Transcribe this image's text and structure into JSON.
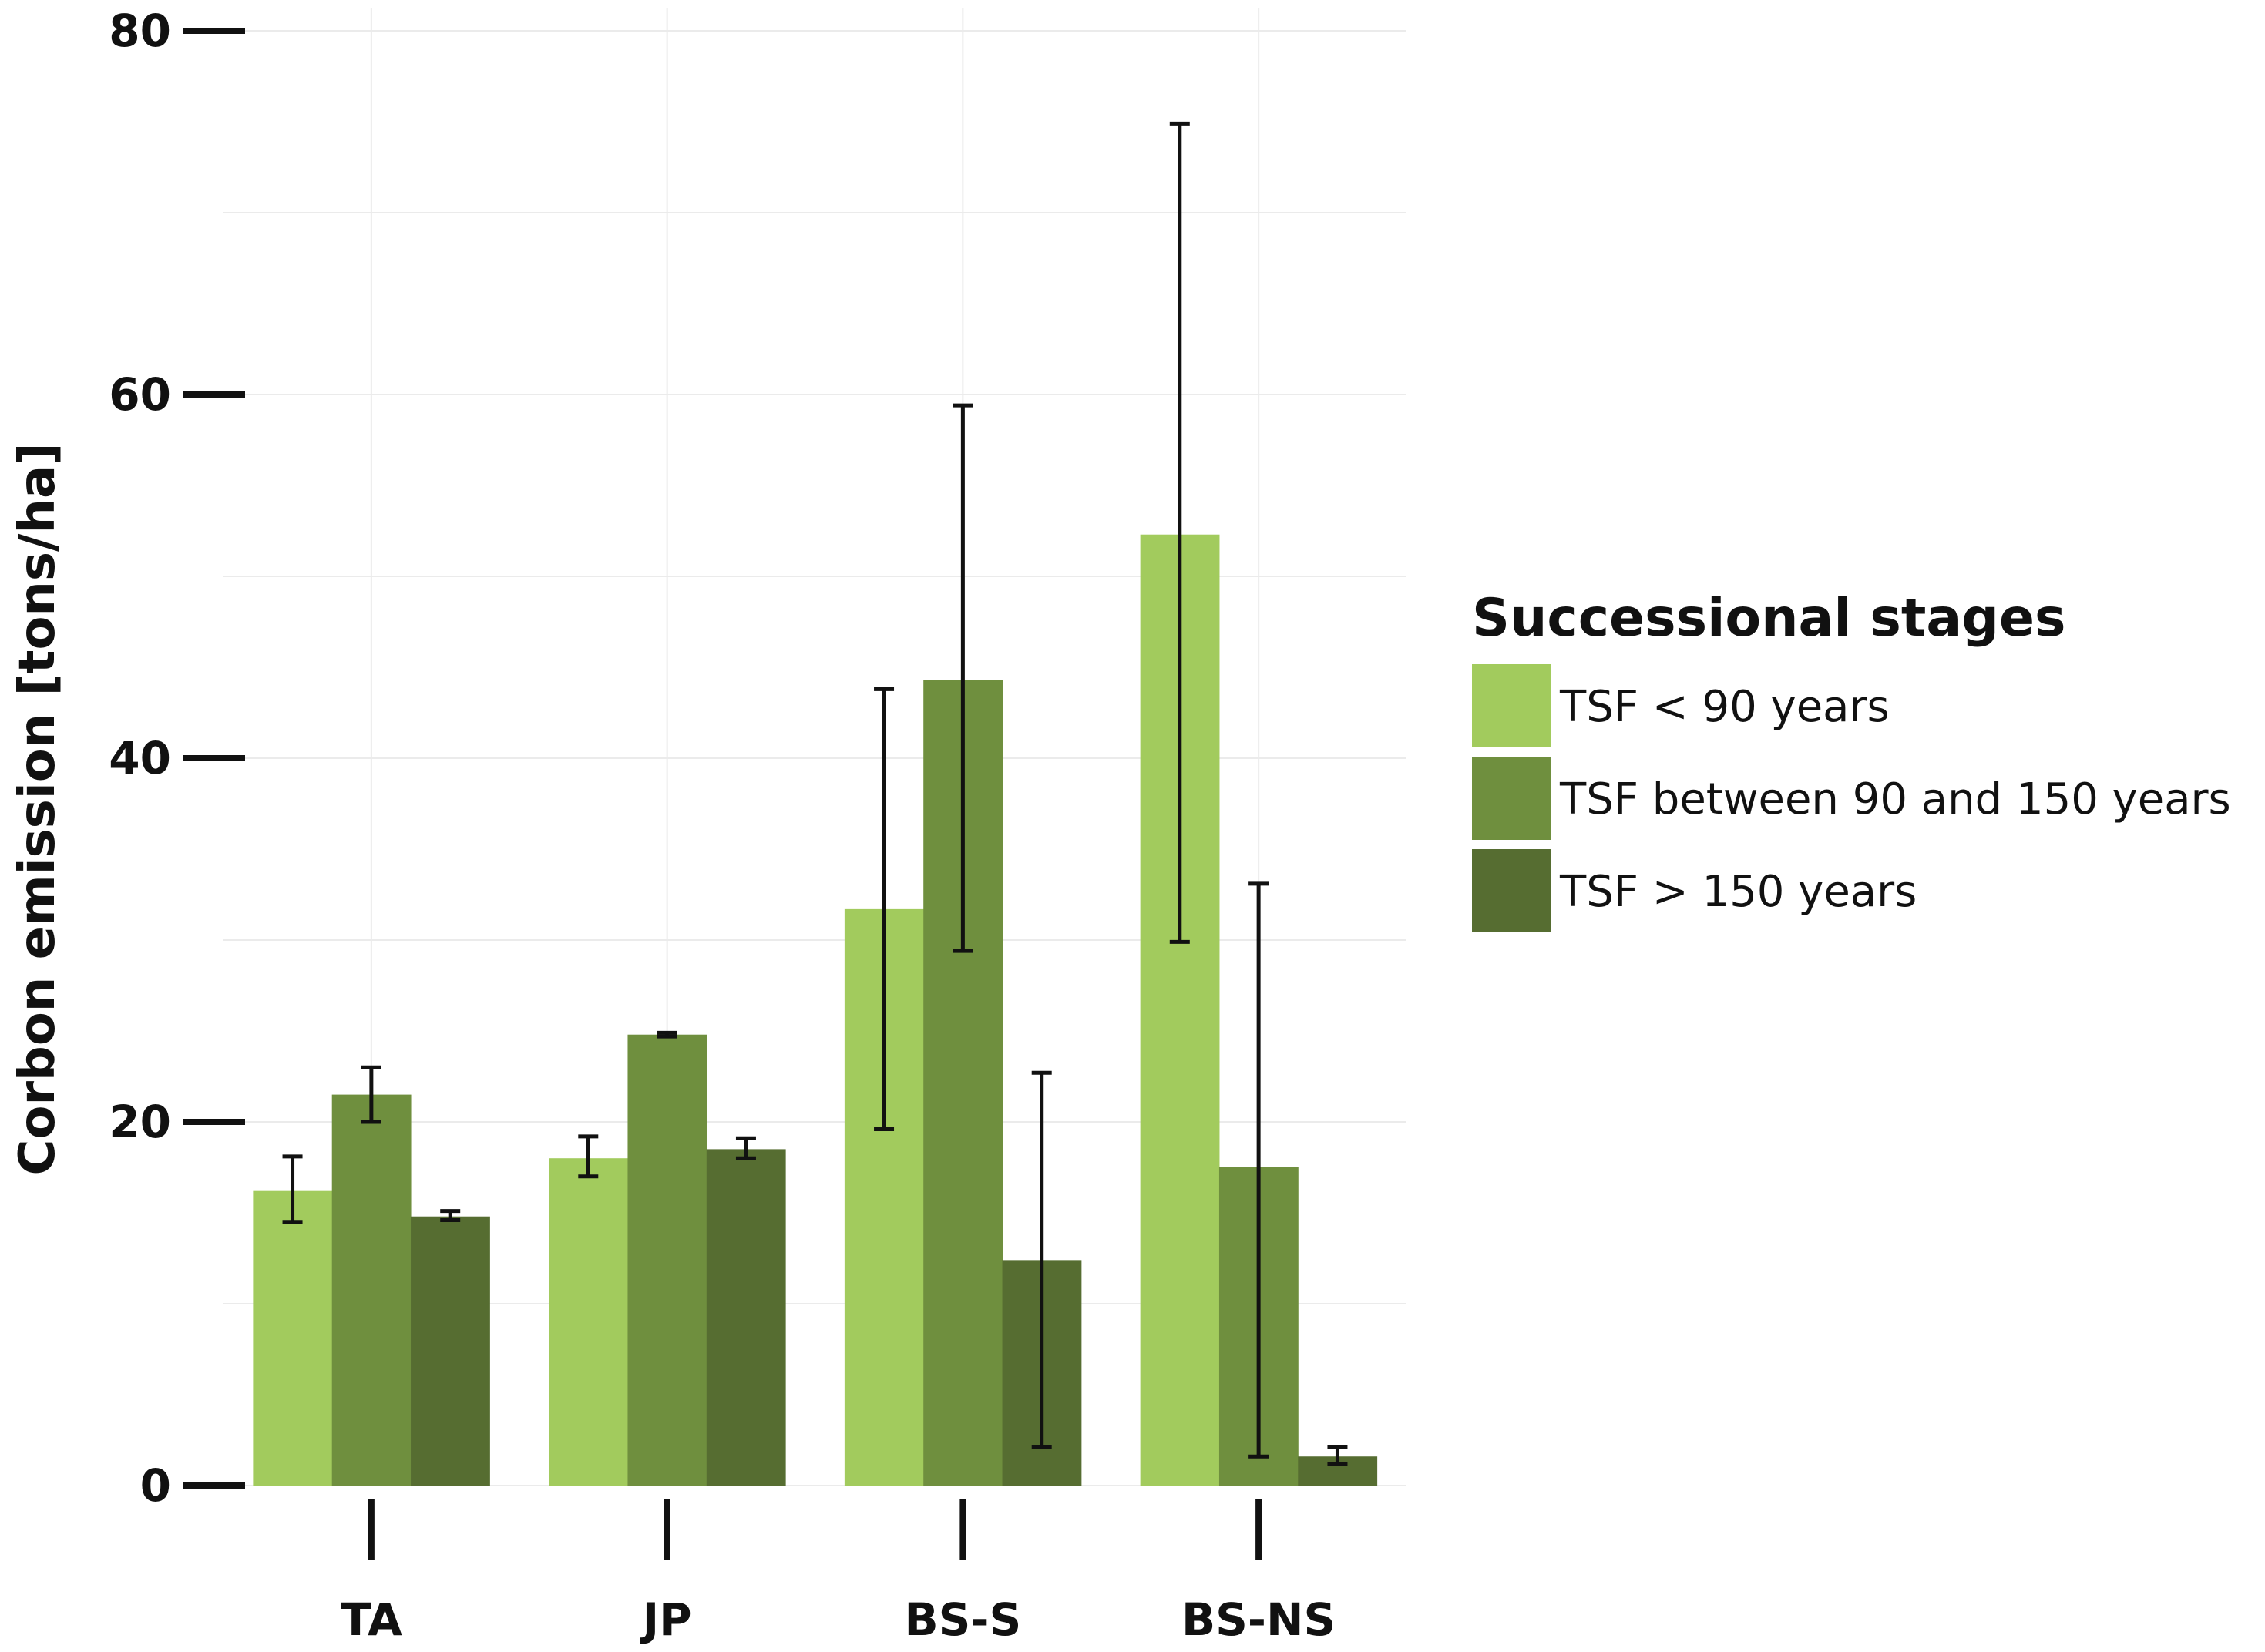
{
  "chart_data": {
    "type": "bar",
    "title": "",
    "xlabel": "",
    "ylabel": "Corbon emission [tons/ha]",
    "ylim": [
      0,
      80
    ],
    "yticks": [
      0,
      20,
      40,
      60,
      80
    ],
    "grid": true,
    "categories": [
      "TA",
      "JP",
      "BS-S",
      "BS-NS"
    ],
    "series": [
      {
        "name": "TSF < 90 years",
        "color": "#a2cb5d",
        "values": [
          16.2,
          18.0,
          31.7,
          52.3
        ],
        "error_low": [
          14.5,
          17.0,
          19.6,
          29.9
        ],
        "error_high": [
          18.1,
          19.2,
          43.8,
          74.9
        ]
      },
      {
        "name": "TSF between 90 and 150 years",
        "color": "#6f8f3e",
        "values": [
          21.5,
          24.8,
          44.3,
          17.5
        ],
        "error_low": [
          20.0,
          24.7,
          29.4,
          1.6
        ],
        "error_high": [
          23.0,
          24.9,
          59.4,
          33.1
        ]
      },
      {
        "name": "TSF > 150 years",
        "color": "#566d31",
        "values": [
          14.8,
          18.5,
          12.4,
          1.6
        ],
        "error_low": [
          14.6,
          18.0,
          2.1,
          1.2
        ],
        "error_high": [
          15.1,
          19.1,
          22.7,
          2.1
        ]
      }
    ],
    "legend": {
      "title": "Successional stages",
      "placement": "right"
    }
  }
}
